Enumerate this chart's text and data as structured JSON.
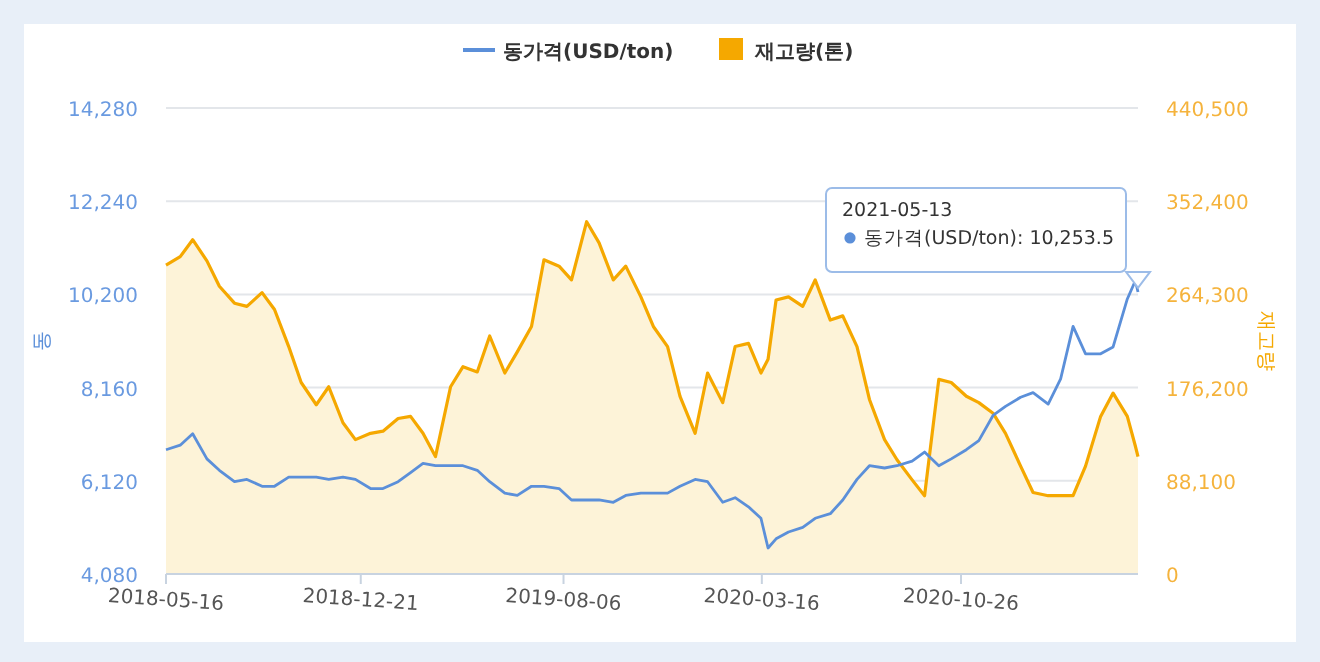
{
  "chart_data": {
    "type": "line",
    "x": [
      "2018-05-16",
      "2018-06-01",
      "2018-06-15",
      "2018-07-01",
      "2018-07-15",
      "2018-08-01",
      "2018-08-15",
      "2018-09-01",
      "2018-09-15",
      "2018-10-01",
      "2018-10-15",
      "2018-11-01",
      "2018-11-15",
      "2018-12-01",
      "2018-12-15",
      "2019-01-01",
      "2019-01-15",
      "2019-02-01",
      "2019-02-15",
      "2019-03-01",
      "2019-03-15",
      "2019-04-01",
      "2019-04-15",
      "2019-05-01",
      "2019-05-15",
      "2019-06-01",
      "2019-06-15",
      "2019-07-01",
      "2019-07-15",
      "2019-08-01",
      "2019-08-15",
      "2019-09-01",
      "2019-09-15",
      "2019-10-01",
      "2019-10-15",
      "2019-11-01",
      "2019-11-15",
      "2019-12-01",
      "2019-12-15",
      "2020-01-01",
      "2020-01-15",
      "2020-02-01",
      "2020-02-15",
      "2020-03-01",
      "2020-03-15",
      "2020-03-23",
      "2020-04-01",
      "2020-04-15",
      "2020-05-01",
      "2020-05-15",
      "2020-06-01",
      "2020-06-15",
      "2020-07-01",
      "2020-07-15",
      "2020-08-01",
      "2020-08-15",
      "2020-09-01",
      "2020-09-15",
      "2020-10-01",
      "2020-10-15",
      "2020-11-01",
      "2020-11-15",
      "2020-12-01",
      "2020-12-15",
      "2021-01-01",
      "2021-01-15",
      "2021-02-01",
      "2021-02-15",
      "2021-03-01",
      "2021-03-15",
      "2021-04-01",
      "2021-04-15",
      "2021-05-01",
      "2021-05-10",
      "2021-05-13"
    ],
    "series": [
      {
        "name": "동가격(USD/ton)",
        "axis": "y",
        "color": "#5b8fd9",
        "values": [
          6800,
          6900,
          7150,
          6600,
          6350,
          6100,
          6150,
          6000,
          6000,
          6200,
          6200,
          6200,
          6150,
          6200,
          6150,
          5950,
          5950,
          6100,
          6300,
          6500,
          6450,
          6450,
          6450,
          6350,
          6100,
          5850,
          5800,
          6000,
          6000,
          5950,
          5700,
          5700,
          5700,
          5650,
          5800,
          5850,
          5850,
          5850,
          6000,
          6150,
          6100,
          5650,
          5750,
          5550,
          5300,
          4650,
          4850,
          5000,
          5100,
          5300,
          5400,
          5700,
          6150,
          6450,
          6400,
          6450,
          6550,
          6750,
          6450,
          6600,
          6800,
          7000,
          7550,
          7750,
          7950,
          8050,
          7800,
          8350,
          9500,
          8900,
          8900,
          9050,
          10100,
          10500,
          10253.5
        ]
      },
      {
        "name": "재고량(톤)",
        "type": "area",
        "axis": "y2",
        "color": "#f5a800",
        "values": [
          292000,
          300000,
          316000,
          296000,
          272000,
          256000,
          253000,
          266000,
          250000,
          215000,
          181000,
          160000,
          177000,
          143000,
          127000,
          133000,
          135000,
          147000,
          149000,
          133000,
          111000,
          177000,
          196000,
          191000,
          225000,
          190000,
          210000,
          234000,
          297000,
          291000,
          278000,
          333000,
          313000,
          278000,
          291000,
          262000,
          234000,
          215000,
          168000,
          133000,
          190000,
          162000,
          215000,
          218000,
          190000,
          203000,
          259000,
          262000,
          253000,
          278000,
          240000,
          244000,
          215000,
          165000,
          127000,
          108000,
          89000,
          74000,
          184000,
          181000,
          168000,
          162000,
          152000,
          133000,
          102000,
          77000,
          74000,
          74000,
          74000,
          102000,
          149000,
          171000,
          149000,
          121000,
          111000
        ]
      }
    ],
    "xlim": [
      "2018-05-16",
      "2021-05-13"
    ],
    "xticks": [
      {
        "value": "2018-05-16",
        "label": "2018-05-16"
      },
      {
        "value": "2018-12-21",
        "label": "2018-12-21"
      },
      {
        "value": "2019-08-06",
        "label": "2019-08-06"
      },
      {
        "value": "2020-03-16",
        "label": "2020-03-16"
      },
      {
        "value": "2020-10-26",
        "label": "2020-10-26"
      }
    ],
    "ylim": [
      4080,
      14280
    ],
    "yticks": [
      {
        "value": 4080,
        "label": "4,080"
      },
      {
        "value": 6120,
        "label": "6,120"
      },
      {
        "value": 8160,
        "label": "8,160"
      },
      {
        "value": 10200,
        "label": "10,200"
      },
      {
        "value": 12240,
        "label": "12,240"
      },
      {
        "value": 14280,
        "label": "14,280"
      }
    ],
    "y2lim": [
      0,
      440500
    ],
    "y2ticks": [
      0,
      {
        "value": 88100,
        "label": "88,100"
      },
      {
        "value": 176200,
        "label": "176,200"
      },
      {
        "value": 264300,
        "label": "264,300"
      },
      {
        "value": 352400,
        "label": "352,400"
      },
      {
        "value": 440500,
        "label": "440,500"
      }
    ],
    "ylabel": "동",
    "y2label": "재고량",
    "annotations": [
      "2021-05-13",
      "동가격(USD/ton): 10,253.5"
    ],
    "grid": "y",
    "legend": "top",
    "marker": "none"
  }
}
